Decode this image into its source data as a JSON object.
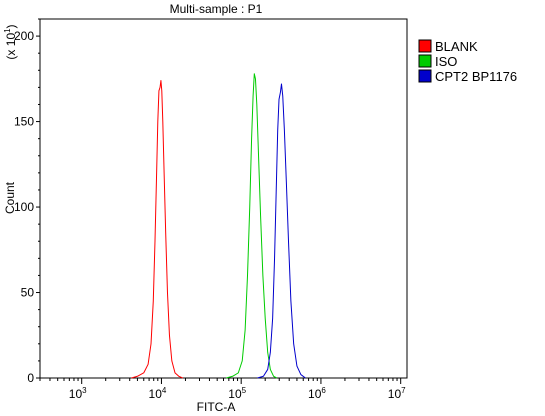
{
  "chart_data": {
    "type": "line",
    "title": "Multi-sample : P1",
    "xlabel": "FITC-A",
    "ylabel": "Count",
    "y_multiplier": "(x 10",
    "y_multiplier_exp": "1",
    "y_multiplier_close": ")",
    "x_scale": "log",
    "xlim": [
      300,
      12000000
    ],
    "ylim": [
      0,
      210
    ],
    "x_ticks": [
      {
        "value": 1000,
        "base": "10",
        "exp": "3"
      },
      {
        "value": 10000,
        "base": "10",
        "exp": "4"
      },
      {
        "value": 100000,
        "base": "10",
        "exp": "5"
      },
      {
        "value": 1000000,
        "base": "10",
        "exp": "6"
      },
      {
        "value": 10000000,
        "base": "10",
        "exp": "7"
      }
    ],
    "y_ticks": [
      0,
      50,
      100,
      150,
      200
    ],
    "legend_position": "top-right",
    "series": [
      {
        "name": "BLANK",
        "color": "#ff0000",
        "points": [
          [
            4200,
            0
          ],
          [
            5000,
            1
          ],
          [
            6000,
            3
          ],
          [
            6800,
            8
          ],
          [
            7400,
            20
          ],
          [
            7900,
            45
          ],
          [
            8300,
            80
          ],
          [
            8700,
            120
          ],
          [
            9000,
            150
          ],
          [
            9300,
            168
          ],
          [
            9600,
            170
          ],
          [
            9850,
            174
          ],
          [
            10100,
            168
          ],
          [
            10400,
            150
          ],
          [
            10800,
            120
          ],
          [
            11300,
            85
          ],
          [
            11900,
            50
          ],
          [
            12600,
            25
          ],
          [
            13500,
            10
          ],
          [
            14800,
            3
          ],
          [
            16500,
            1
          ],
          [
            18500,
            0
          ]
        ]
      },
      {
        "name": "ISO",
        "color": "#00cc00",
        "points": [
          [
            65000,
            0
          ],
          [
            78000,
            1
          ],
          [
            92000,
            3
          ],
          [
            103000,
            10
          ],
          [
            112000,
            28
          ],
          [
            120000,
            60
          ],
          [
            128000,
            100
          ],
          [
            135000,
            140
          ],
          [
            141000,
            165
          ],
          [
            146000,
            178
          ],
          [
            151000,
            175
          ],
          [
            157000,
            160
          ],
          [
            165000,
            130
          ],
          [
            175000,
            95
          ],
          [
            187000,
            60
          ],
          [
            200000,
            35
          ],
          [
            215000,
            15
          ],
          [
            232000,
            5
          ],
          [
            255000,
            1
          ],
          [
            280000,
            0
          ]
        ]
      },
      {
        "name": "CPT2 BP1176",
        "color": "#0000cc",
        "points": [
          [
            160000,
            0
          ],
          [
            190000,
            1
          ],
          [
            215000,
            5
          ],
          [
            232000,
            15
          ],
          [
            248000,
            35
          ],
          [
            262000,
            70
          ],
          [
            275000,
            110
          ],
          [
            287000,
            145
          ],
          [
            298000,
            163
          ],
          [
            310000,
            167
          ],
          [
            320000,
            172
          ],
          [
            332000,
            165
          ],
          [
            348000,
            145
          ],
          [
            368000,
            115
          ],
          [
            392000,
            80
          ],
          [
            420000,
            45
          ],
          [
            455000,
            20
          ],
          [
            500000,
            7
          ],
          [
            560000,
            2
          ],
          [
            640000,
            0
          ]
        ]
      }
    ]
  }
}
